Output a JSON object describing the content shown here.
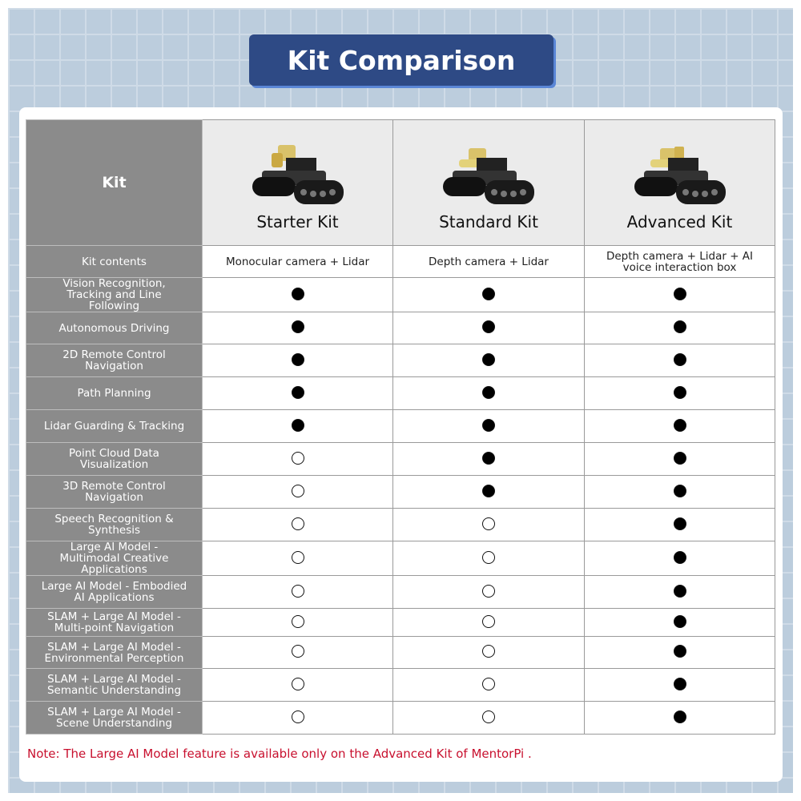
{
  "title": "Kit Comparison",
  "header": {
    "label": "Kit",
    "kits": [
      "Starter Kit",
      "Standard Kit",
      "Advanced Kit"
    ]
  },
  "contents": {
    "label": "Kit contents",
    "values": [
      "Monocular camera + Lidar",
      "Depth camera + Lidar",
      "Depth camera + Lidar + AI voice interaction box"
    ]
  },
  "features": [
    {
      "label": "Vision Recognition, Tracking and Line Following",
      "support": [
        true,
        true,
        true
      ]
    },
    {
      "label": "Autonomous Driving",
      "support": [
        true,
        true,
        true
      ]
    },
    {
      "label": "2D Remote Control Navigation",
      "support": [
        true,
        true,
        true
      ]
    },
    {
      "label": "Path Planning",
      "support": [
        true,
        true,
        true
      ]
    },
    {
      "label": "Lidar Guarding & Tracking",
      "support": [
        true,
        true,
        true
      ]
    },
    {
      "label": "Point Cloud Data Visualization",
      "support": [
        false,
        true,
        true
      ]
    },
    {
      "label": "3D Remote Control Navigation",
      "support": [
        false,
        true,
        true
      ]
    },
    {
      "label": "Speech Recognition & Synthesis",
      "support": [
        false,
        false,
        true
      ]
    },
    {
      "label": "Large AI Model - Multimodal Creative Applications",
      "support": [
        false,
        false,
        true
      ]
    },
    {
      "label": "Large AI Model - Embodied AI Applications",
      "support": [
        false,
        false,
        true
      ]
    },
    {
      "label": "SLAM + Large AI Model - Multi-point Navigation",
      "support": [
        false,
        false,
        true
      ]
    },
    {
      "label": "SLAM + Large AI Model - Environmental Perception",
      "support": [
        false,
        false,
        true
      ]
    },
    {
      "label": "SLAM + Large AI Model - Semantic Understanding",
      "support": [
        false,
        false,
        true
      ]
    },
    {
      "label": "SLAM + Large AI Model - Scene Understanding",
      "support": [
        false,
        false,
        true
      ]
    }
  ],
  "note": "Note: The Large AI  Model feature is available only on the Advanced Kit of MentorPi .",
  "colors": {
    "banner": "#2e4a85",
    "label_bg": "#8b8b8b",
    "note": "#c8102e"
  }
}
